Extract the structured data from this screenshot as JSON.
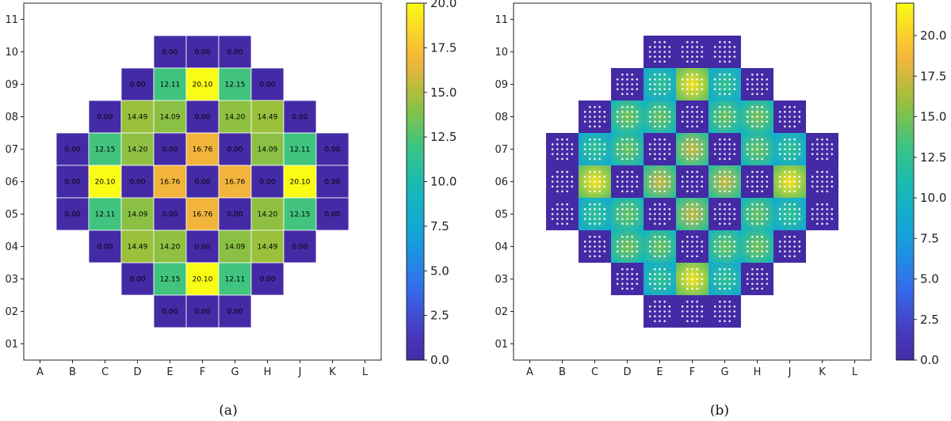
{
  "chart_data": [
    {
      "type": "heatmap",
      "panel_caption": "(a)",
      "x_ticks": [
        "A",
        "B",
        "C",
        "D",
        "E",
        "F",
        "G",
        "H",
        "J",
        "K",
        "L"
      ],
      "y_ticks": [
        "01",
        "02",
        "03",
        "04",
        "05",
        "06",
        "07",
        "08",
        "09",
        "10",
        "11"
      ],
      "colorbar": {
        "min": 0.0,
        "max": 20.0,
        "ticks": [
          "0.0",
          "2.5",
          "5.0",
          "7.5",
          "10.0",
          "12.5",
          "15.0",
          "17.5",
          "20.0"
        ]
      },
      "cells": [
        {
          "x": "E",
          "y": "10",
          "value": 0.0,
          "label": "0.00"
        },
        {
          "x": "F",
          "y": "10",
          "value": 0.0,
          "label": "0.00"
        },
        {
          "x": "G",
          "y": "10",
          "value": 0.0,
          "label": "0.00"
        },
        {
          "x": "D",
          "y": "09",
          "value": 0.0,
          "label": "0.00"
        },
        {
          "x": "E",
          "y": "09",
          "value": 12.11,
          "label": "12.11"
        },
        {
          "x": "F",
          "y": "09",
          "value": 20.1,
          "label": "20.10"
        },
        {
          "x": "G",
          "y": "09",
          "value": 12.15,
          "label": "12.15"
        },
        {
          "x": "H",
          "y": "09",
          "value": 0.0,
          "label": "0.00"
        },
        {
          "x": "C",
          "y": "08",
          "value": 0.0,
          "label": "0.00"
        },
        {
          "x": "D",
          "y": "08",
          "value": 14.49,
          "label": "14.49"
        },
        {
          "x": "E",
          "y": "08",
          "value": 14.09,
          "label": "14.09"
        },
        {
          "x": "F",
          "y": "08",
          "value": 0.0,
          "label": "0.00"
        },
        {
          "x": "G",
          "y": "08",
          "value": 14.2,
          "label": "14.20"
        },
        {
          "x": "H",
          "y": "08",
          "value": 14.49,
          "label": "14.49"
        },
        {
          "x": "J",
          "y": "08",
          "value": 0.0,
          "label": "0.00"
        },
        {
          "x": "B",
          "y": "07",
          "value": 0.0,
          "label": "0.00"
        },
        {
          "x": "C",
          "y": "07",
          "value": 12.15,
          "label": "12.15"
        },
        {
          "x": "D",
          "y": "07",
          "value": 14.2,
          "label": "14.20"
        },
        {
          "x": "E",
          "y": "07",
          "value": 0.0,
          "label": "0.00"
        },
        {
          "x": "F",
          "y": "07",
          "value": 16.76,
          "label": "16.76"
        },
        {
          "x": "G",
          "y": "07",
          "value": 0.0,
          "label": "0.00"
        },
        {
          "x": "H",
          "y": "07",
          "value": 14.09,
          "label": "14.09"
        },
        {
          "x": "J",
          "y": "07",
          "value": 12.11,
          "label": "12.11"
        },
        {
          "x": "K",
          "y": "07",
          "value": 0.0,
          "label": "0.00"
        },
        {
          "x": "B",
          "y": "06",
          "value": 0.0,
          "label": "0.00"
        },
        {
          "x": "C",
          "y": "06",
          "value": 20.1,
          "label": "20.10"
        },
        {
          "x": "D",
          "y": "06",
          "value": 0.0,
          "label": "0.00"
        },
        {
          "x": "E",
          "y": "06",
          "value": 16.76,
          "label": "16.76"
        },
        {
          "x": "F",
          "y": "06",
          "value": 0.0,
          "label": "0.00"
        },
        {
          "x": "G",
          "y": "06",
          "value": 16.76,
          "label": "16.76"
        },
        {
          "x": "H",
          "y": "06",
          "value": 0.0,
          "label": "0.00"
        },
        {
          "x": "J",
          "y": "06",
          "value": 20.1,
          "label": "20.10"
        },
        {
          "x": "K",
          "y": "06",
          "value": 0.0,
          "label": "0.00"
        },
        {
          "x": "B",
          "y": "05",
          "value": 0.0,
          "label": "0.00"
        },
        {
          "x": "C",
          "y": "05",
          "value": 12.11,
          "label": "12.11"
        },
        {
          "x": "D",
          "y": "05",
          "value": 14.09,
          "label": "14.09"
        },
        {
          "x": "E",
          "y": "05",
          "value": 0.0,
          "label": "0.00"
        },
        {
          "x": "F",
          "y": "05",
          "value": 16.76,
          "label": "16.76"
        },
        {
          "x": "G",
          "y": "05",
          "value": 0.0,
          "label": "0.00"
        },
        {
          "x": "H",
          "y": "05",
          "value": 14.2,
          "label": "14.20"
        },
        {
          "x": "J",
          "y": "05",
          "value": 12.15,
          "label": "12.15"
        },
        {
          "x": "K",
          "y": "05",
          "value": 0.0,
          "label": "0.00"
        },
        {
          "x": "C",
          "y": "04",
          "value": 0.0,
          "label": "0.00"
        },
        {
          "x": "D",
          "y": "04",
          "value": 14.49,
          "label": "14.49"
        },
        {
          "x": "E",
          "y": "04",
          "value": 14.2,
          "label": "14.20"
        },
        {
          "x": "F",
          "y": "04",
          "value": 0.0,
          "label": "0.00"
        },
        {
          "x": "G",
          "y": "04",
          "value": 14.09,
          "label": "14.09"
        },
        {
          "x": "H",
          "y": "04",
          "value": 14.49,
          "label": "14.49"
        },
        {
          "x": "J",
          "y": "04",
          "value": 0.0,
          "label": "0.00"
        },
        {
          "x": "D",
          "y": "03",
          "value": 0.0,
          "label": "0.00"
        },
        {
          "x": "E",
          "y": "03",
          "value": 12.15,
          "label": "12.15"
        },
        {
          "x": "F",
          "y": "03",
          "value": 20.1,
          "label": "20.10"
        },
        {
          "x": "G",
          "y": "03",
          "value": 12.11,
          "label": "12.11"
        },
        {
          "x": "H",
          "y": "03",
          "value": 0.0,
          "label": "0.00"
        },
        {
          "x": "E",
          "y": "02",
          "value": 0.0,
          "label": "0.00"
        },
        {
          "x": "F",
          "y": "02",
          "value": 0.0,
          "label": "0.00"
        },
        {
          "x": "G",
          "y": "02",
          "value": 0.0,
          "label": "0.00"
        }
      ]
    },
    {
      "type": "heatmap",
      "panel_caption": "(b)",
      "x_ticks": [
        "A",
        "B",
        "C",
        "D",
        "E",
        "F",
        "G",
        "H",
        "J",
        "K",
        "L"
      ],
      "y_ticks": [
        "01",
        "02",
        "03",
        "04",
        "05",
        "06",
        "07",
        "08",
        "09",
        "10",
        "11"
      ],
      "colorbar": {
        "min": 0.0,
        "max": 22.0,
        "ticks": [
          "0.0",
          "2.5",
          "5.0",
          "7.5",
          "10.0",
          "12.5",
          "15.0",
          "17.5",
          "20.0"
        ]
      },
      "pin_grid": 5,
      "cells": [
        {
          "x": "E",
          "y": "10",
          "value": 0.0
        },
        {
          "x": "F",
          "y": "10",
          "value": 0.0
        },
        {
          "x": "G",
          "y": "10",
          "value": 0.0
        },
        {
          "x": "D",
          "y": "09",
          "value": 0.0
        },
        {
          "x": "E",
          "y": "09",
          "value": 12.11
        },
        {
          "x": "F",
          "y": "09",
          "value": 20.1
        },
        {
          "x": "G",
          "y": "09",
          "value": 12.15
        },
        {
          "x": "H",
          "y": "09",
          "value": 0.0
        },
        {
          "x": "C",
          "y": "08",
          "value": 0.0
        },
        {
          "x": "D",
          "y": "08",
          "value": 14.49
        },
        {
          "x": "E",
          "y": "08",
          "value": 14.09
        },
        {
          "x": "F",
          "y": "08",
          "value": 0.0
        },
        {
          "x": "G",
          "y": "08",
          "value": 14.2
        },
        {
          "x": "H",
          "y": "08",
          "value": 14.49
        },
        {
          "x": "J",
          "y": "08",
          "value": 0.0
        },
        {
          "x": "B",
          "y": "07",
          "value": 0.0
        },
        {
          "x": "C",
          "y": "07",
          "value": 12.15
        },
        {
          "x": "D",
          "y": "07",
          "value": 14.2
        },
        {
          "x": "E",
          "y": "07",
          "value": 0.0
        },
        {
          "x": "F",
          "y": "07",
          "value": 16.76
        },
        {
          "x": "G",
          "y": "07",
          "value": 0.0
        },
        {
          "x": "H",
          "y": "07",
          "value": 14.09
        },
        {
          "x": "J",
          "y": "07",
          "value": 12.11
        },
        {
          "x": "K",
          "y": "07",
          "value": 0.0
        },
        {
          "x": "B",
          "y": "06",
          "value": 0.0
        },
        {
          "x": "C",
          "y": "06",
          "value": 20.1
        },
        {
          "x": "D",
          "y": "06",
          "value": 0.0
        },
        {
          "x": "E",
          "y": "06",
          "value": 16.76
        },
        {
          "x": "F",
          "y": "06",
          "value": 0.0
        },
        {
          "x": "G",
          "y": "06",
          "value": 16.76
        },
        {
          "x": "H",
          "y": "06",
          "value": 0.0
        },
        {
          "x": "J",
          "y": "06",
          "value": 20.1
        },
        {
          "x": "K",
          "y": "06",
          "value": 0.0
        },
        {
          "x": "B",
          "y": "05",
          "value": 0.0
        },
        {
          "x": "C",
          "y": "05",
          "value": 12.11
        },
        {
          "x": "D",
          "y": "05",
          "value": 14.09
        },
        {
          "x": "E",
          "y": "05",
          "value": 0.0
        },
        {
          "x": "F",
          "y": "05",
          "value": 16.76
        },
        {
          "x": "G",
          "y": "05",
          "value": 0.0
        },
        {
          "x": "H",
          "y": "05",
          "value": 14.2
        },
        {
          "x": "J",
          "y": "05",
          "value": 12.15
        },
        {
          "x": "K",
          "y": "05",
          "value": 0.0
        },
        {
          "x": "C",
          "y": "04",
          "value": 0.0
        },
        {
          "x": "D",
          "y": "04",
          "value": 14.49
        },
        {
          "x": "E",
          "y": "04",
          "value": 14.2
        },
        {
          "x": "F",
          "y": "04",
          "value": 0.0
        },
        {
          "x": "G",
          "y": "04",
          "value": 14.09
        },
        {
          "x": "H",
          "y": "04",
          "value": 14.49
        },
        {
          "x": "J",
          "y": "04",
          "value": 0.0
        },
        {
          "x": "D",
          "y": "03",
          "value": 0.0
        },
        {
          "x": "E",
          "y": "03",
          "value": 12.15
        },
        {
          "x": "F",
          "y": "03",
          "value": 20.1
        },
        {
          "x": "G",
          "y": "03",
          "value": 12.11
        },
        {
          "x": "H",
          "y": "03",
          "value": 0.0
        },
        {
          "x": "E",
          "y": "02",
          "value": 0.0
        },
        {
          "x": "F",
          "y": "02",
          "value": 0.0
        },
        {
          "x": "G",
          "y": "02",
          "value": 0.0
        }
      ]
    }
  ]
}
